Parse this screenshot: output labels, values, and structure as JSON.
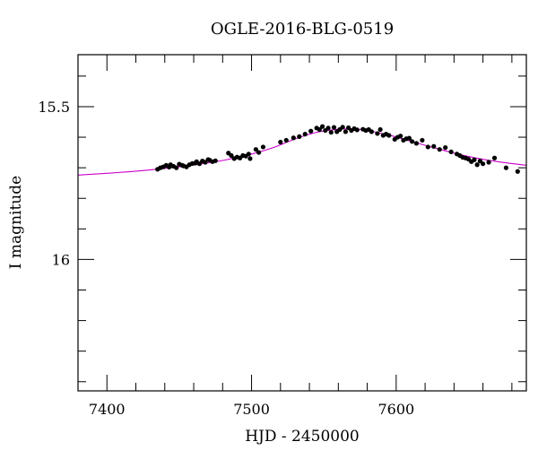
{
  "chart_data": {
    "type": "scatter",
    "title": "OGLE-2016-BLG-0519",
    "xlabel": "HJD - 2450000",
    "ylabel": "I magnitude",
    "xlim": [
      7380,
      7690
    ],
    "ylim": [
      16.43,
      15.33
    ],
    "y_inverted": true,
    "x_ticks": [
      7400,
      7500,
      7600
    ],
    "y_ticks": [
      15.5,
      16
    ],
    "x_minor_step": 20,
    "y_minor_step": 0.1,
    "grid": false,
    "colors": {
      "points": "#000000",
      "model": "#cc00cc",
      "axes": "#000000"
    },
    "series": [
      {
        "kind": "points",
        "x": [
          7435,
          7437,
          7439,
          7441,
          7443,
          7444,
          7446,
          7448,
          7450,
          7452,
          7453,
          7455,
          7457,
          7459,
          7461,
          7462,
          7464,
          7466,
          7468,
          7470,
          7471,
          7473,
          7475,
          7484,
          7486,
          7488,
          7490,
          7492,
          7494,
          7496,
          7498,
          7499,
          7503,
          7505,
          7508,
          7520,
          7524,
          7529,
          7533,
          7537,
          7541,
          7545,
          7547,
          7549,
          7551,
          7553,
          7555,
          7557,
          7559,
          7561,
          7563,
          7565,
          7567,
          7569,
          7571,
          7573,
          7577,
          7579,
          7581,
          7583,
          7587,
          7589,
          7591,
          7593,
          7595,
          7599,
          7601,
          7603,
          7605,
          7607,
          7609,
          7611,
          7614,
          7618,
          7622,
          7626,
          7630,
          7634,
          7638,
          7642,
          7644,
          7646,
          7648,
          7650,
          7652,
          7654,
          7656,
          7658,
          7660,
          7664,
          7668,
          7676,
          7684
        ],
        "y": [
          15.705,
          15.7,
          15.697,
          15.692,
          15.698,
          15.69,
          15.695,
          15.7,
          15.688,
          15.692,
          15.694,
          15.697,
          15.69,
          15.686,
          15.685,
          15.68,
          15.687,
          15.678,
          15.682,
          15.673,
          15.675,
          15.68,
          15.677,
          15.652,
          15.66,
          15.67,
          15.665,
          15.668,
          15.66,
          15.662,
          15.655,
          15.67,
          15.64,
          15.65,
          15.632,
          15.616,
          15.61,
          15.602,
          15.598,
          15.59,
          15.58,
          15.57,
          15.575,
          15.565,
          15.578,
          15.57,
          15.584,
          15.568,
          15.582,
          15.575,
          15.567,
          15.582,
          15.569,
          15.578,
          15.572,
          15.576,
          15.574,
          15.578,
          15.575,
          15.582,
          15.588,
          15.575,
          15.594,
          15.59,
          15.594,
          15.607,
          15.6,
          15.596,
          15.61,
          15.605,
          15.603,
          15.614,
          15.62,
          15.61,
          15.632,
          15.63,
          15.64,
          15.634,
          15.648,
          15.655,
          15.66,
          15.666,
          15.668,
          15.672,
          15.68,
          15.674,
          15.69,
          15.678,
          15.687,
          15.682,
          15.668,
          15.7,
          15.712
        ]
      },
      {
        "kind": "model_curve",
        "x": [
          7380,
          7400,
          7420,
          7440,
          7460,
          7480,
          7500,
          7515,
          7530,
          7545,
          7560,
          7570,
          7580,
          7595,
          7610,
          7625,
          7640,
          7655,
          7670,
          7690
        ],
        "y": [
          15.724,
          15.718,
          15.711,
          15.702,
          15.691,
          15.676,
          15.655,
          15.634,
          15.606,
          15.584,
          15.574,
          15.573,
          15.578,
          15.593,
          15.613,
          15.633,
          15.652,
          15.668,
          15.68,
          15.692
        ]
      }
    ]
  }
}
